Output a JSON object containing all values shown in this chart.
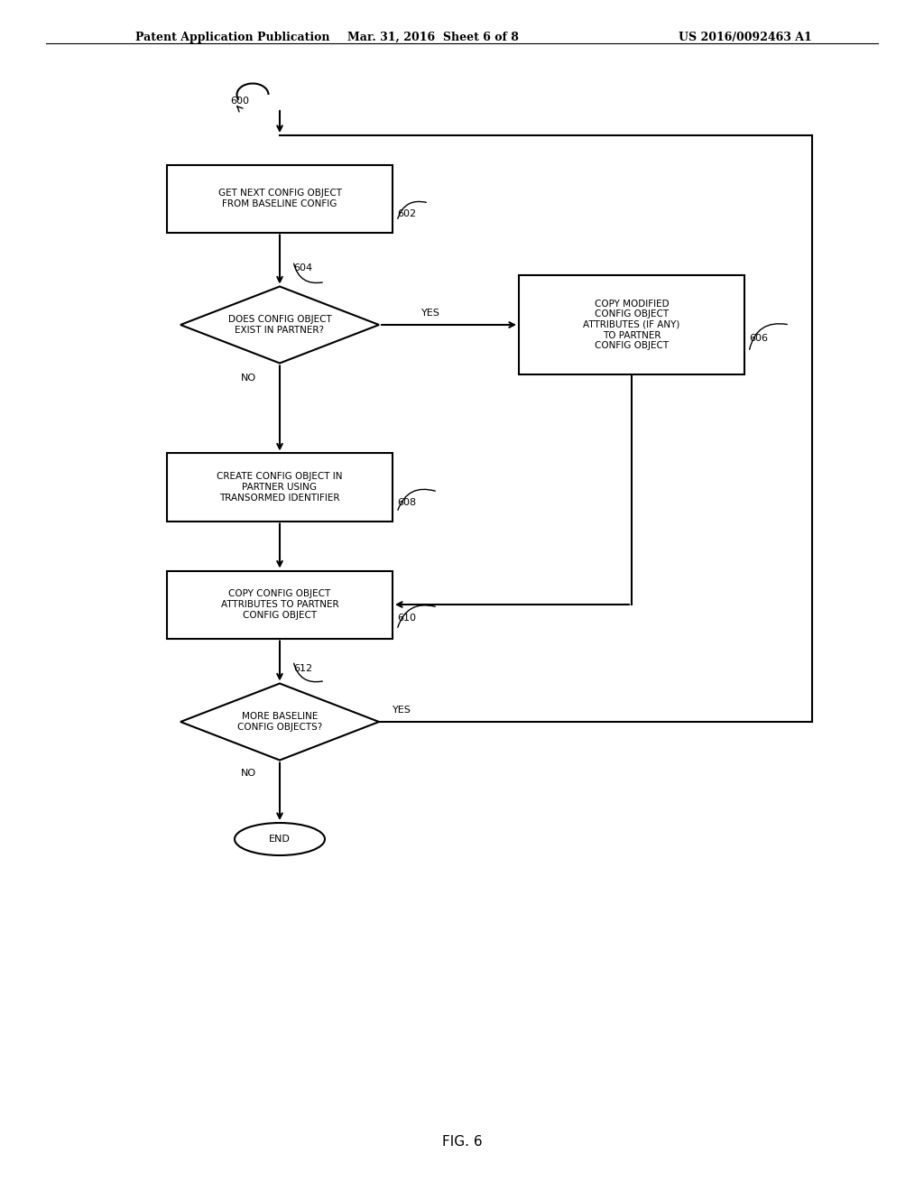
{
  "bg_color": "#ffffff",
  "text_color": "#000000",
  "header_left": "Patent Application Publication",
  "header_mid": "Mar. 31, 2016  Sheet 6 of 8",
  "header_right": "US 2016/0092463 A1",
  "fig_label": "FIG. 6",
  "flow_label": "600",
  "nodes": {
    "box602": {
      "label": "GET NEXT CONFIG OBJECT\nFROM BASELINE CONFIG",
      "id": "602"
    },
    "diamond604": {
      "label": "DOES CONFIG OBJECT\nEXIST IN PARTNER?",
      "id": "604"
    },
    "box606": {
      "label": "COPY MODIFIED\nCONFIG OBJECT\nATTRIBUTES (IF ANY)\nTO PARTNER\nCONFIG OBJECT",
      "id": "606"
    },
    "box608": {
      "label": "CREATE CONFIG OBJECT IN\nPARTNER USING\nTRANSORMED IDENTIFIER",
      "id": "608"
    },
    "box610": {
      "label": "COPY CONFIG OBJECT\nATTRIBUTES TO PARTNER\nCONFIG OBJECT",
      "id": "610"
    },
    "diamond612": {
      "label": "MORE BASELINE\nCONFIG OBJECTS?",
      "id": "612"
    },
    "end": {
      "label": "END"
    }
  }
}
